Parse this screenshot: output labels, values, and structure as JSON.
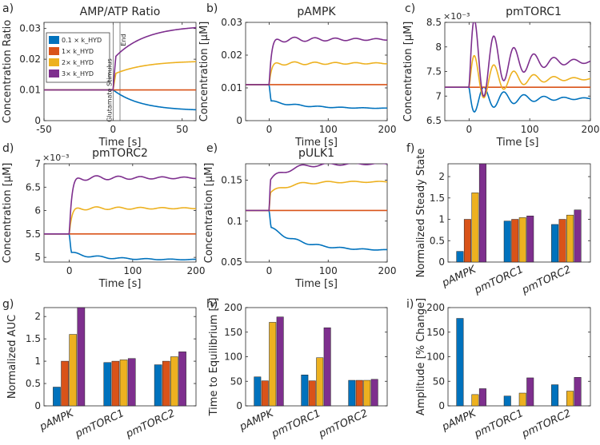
{
  "colors": {
    "blue": "#0072BD",
    "orange": "#D95319",
    "yellow": "#EDB120",
    "purple": "#7E2F8E",
    "axis": "#262626"
  },
  "chart_data": [
    {
      "panel": "a)",
      "type": "line",
      "title": "AMP/ATP Ratio",
      "xlabel": "Time [s]",
      "ylabel": "Concentration Ratio",
      "xlim": [
        -50,
        60
      ],
      "ylim": [
        0,
        0.032
      ],
      "xticks": [
        -50,
        0,
        50
      ],
      "yticks": [
        0,
        0.01,
        0.02,
        0.03
      ],
      "xtick_labels": [
        "-50",
        "0",
        "50"
      ],
      "ytick_labels": [
        "0",
        "0.01",
        "0.02",
        "0.03"
      ],
      "legend": [
        "0.1 × k_HYD",
        "1× k_HYD",
        "2× k_HYD",
        "3× k_HYD"
      ],
      "annotations": [
        "Glutamate Stimulus",
        "End"
      ],
      "vlines": [
        0,
        5
      ],
      "series": [
        {
          "name": "0.1 × k_HYD",
          "color": "blue",
          "shape": "decay",
          "base": 0.01,
          "final": 0.0032,
          "tau": 20,
          "osc": 0
        },
        {
          "name": "1× k_HYD",
          "color": "orange",
          "shape": "flat",
          "base": 0.01,
          "final": 0.01,
          "tau": 10,
          "osc": 0
        },
        {
          "name": "2× k_HYD",
          "color": "yellow",
          "shape": "rise",
          "base": 0.01,
          "final": 0.0195,
          "jump": 0.005,
          "tau": 22,
          "osc": 0
        },
        {
          "name": "3× k_HYD",
          "color": "purple",
          "shape": "rise",
          "base": 0.01,
          "final": 0.031,
          "jump": 0.01,
          "tau": 22,
          "osc": 0
        }
      ]
    },
    {
      "panel": "b)",
      "type": "line",
      "title": "pAMPK",
      "xlabel": "Time [s]",
      "ylabel": "Concentration [μM]",
      "xlim": [
        -40,
        200
      ],
      "ylim": [
        0,
        0.03
      ],
      "xticks": [
        0,
        100,
        200
      ],
      "yticks": [
        0,
        0.01,
        0.02,
        0.03
      ],
      "xtick_labels": [
        "0",
        "100",
        "200"
      ],
      "ytick_labels": [
        "0",
        "0.01",
        "0.02",
        "0.03"
      ],
      "series": [
        {
          "name": "0.1 × k_HYD",
          "color": "blue",
          "shape": "drop",
          "base": 0.011,
          "final": 0.0037,
          "jump": -0.005,
          "tau": 60,
          "osc": 0.0003
        },
        {
          "name": "1× k_HYD",
          "color": "orange",
          "shape": "flat",
          "base": 0.011,
          "final": 0.011,
          "tau": 10,
          "osc": 0
        },
        {
          "name": "2× k_HYD",
          "color": "yellow",
          "shape": "jump",
          "base": 0.011,
          "final": 0.0175,
          "tau": 4,
          "osc": 0.0006
        },
        {
          "name": "3× k_HYD",
          "color": "purple",
          "shape": "jump",
          "base": 0.011,
          "final": 0.0248,
          "tau": 4,
          "osc": 0.0009
        }
      ]
    },
    {
      "panel": "c)",
      "type": "line",
      "title": "pmTORC1",
      "xlabel": "Time [s]",
      "ylabel": "Concentration [μM]",
      "xlim": [
        -40,
        200
      ],
      "ylim": [
        0.0065,
        0.0085
      ],
      "xticks": [
        0,
        100,
        200
      ],
      "yticks": [
        0.0065,
        0.007,
        0.0075,
        0.008,
        0.0085
      ],
      "xtick_labels": [
        "0",
        "100",
        "200"
      ],
      "ytick_labels": [
        "6.5",
        "7",
        "7.5",
        "8",
        "8.5"
      ],
      "exponent_label": "×10⁻³",
      "series": [
        {
          "name": "0.1 × k_HYD",
          "color": "blue",
          "shape": "osc",
          "base": 0.00718,
          "final": 0.00695,
          "amp": -0.00035,
          "decay": 60,
          "period": 33
        },
        {
          "name": "1× k_HYD",
          "color": "orange",
          "shape": "flat",
          "base": 0.00718,
          "final": 0.00718,
          "tau": 10,
          "osc": 0
        },
        {
          "name": "2× k_HYD",
          "color": "yellow",
          "shape": "osc",
          "base": 0.00718,
          "final": 0.00735,
          "amp": 0.0006,
          "decay": 55,
          "period": 33
        },
        {
          "name": "3× k_HYD",
          "color": "purple",
          "shape": "osc",
          "base": 0.00718,
          "final": 0.0077,
          "amp": 0.0011,
          "decay": 55,
          "period": 33
        }
      ]
    },
    {
      "panel": "d)",
      "type": "line",
      "title": "pmTORC2",
      "xlabel": "Time [s]",
      "ylabel": "Concentration [μM]",
      "xlim": [
        -40,
        200
      ],
      "ylim": [
        0.0049,
        0.007
      ],
      "xticks": [
        0,
        100,
        200
      ],
      "yticks": [
        0.005,
        0.0055,
        0.006,
        0.0065,
        0.007
      ],
      "xtick_labels": [
        "0",
        "100",
        "200"
      ],
      "ytick_labels": [
        "5",
        "5.5",
        "6",
        "6.5",
        "7"
      ],
      "exponent_label": "×10⁻³",
      "series": [
        {
          "name": "0.1 × k_HYD",
          "color": "blue",
          "shape": "drop",
          "base": 0.0055,
          "final": 0.00495,
          "jump": -0.0004,
          "tau": 50,
          "osc": 3e-05
        },
        {
          "name": "1× k_HYD",
          "color": "orange",
          "shape": "flat",
          "base": 0.0055,
          "final": 0.0055,
          "tau": 10,
          "osc": 0
        },
        {
          "name": "2× k_HYD",
          "color": "yellow",
          "shape": "jump",
          "base": 0.0055,
          "final": 0.00605,
          "tau": 4,
          "osc": 4e-05
        },
        {
          "name": "3× k_HYD",
          "color": "purple",
          "shape": "jump",
          "base": 0.0055,
          "final": 0.0067,
          "tau": 4,
          "osc": 6e-05
        }
      ]
    },
    {
      "panel": "e)",
      "type": "line",
      "title": "pULK1",
      "xlabel": "Time [s]",
      "ylabel": "Concentration [μM]",
      "xlim": [
        -40,
        200
      ],
      "ylim": [
        0.05,
        0.17
      ],
      "xticks": [
        0,
        100,
        200
      ],
      "yticks": [
        0.05,
        0.1,
        0.15
      ],
      "xtick_labels": [
        "0",
        "100",
        "200"
      ],
      "ytick_labels": [
        "0.05",
        "0.1",
        "0.15"
      ],
      "series": [
        {
          "name": "0.1 × k_HYD",
          "color": "blue",
          "shape": "drop",
          "base": 0.113,
          "final": 0.064,
          "jump": -0.02,
          "tau": 55,
          "osc": 0.002
        },
        {
          "name": "1× k_HYD",
          "color": "orange",
          "shape": "flat",
          "base": 0.113,
          "final": 0.113,
          "tau": 10,
          "osc": 0
        },
        {
          "name": "2× k_HYD",
          "color": "yellow",
          "shape": "rise",
          "base": 0.113,
          "final": 0.148,
          "jump": 0.02,
          "tau": 30,
          "osc": 0.002
        },
        {
          "name": "3× k_HYD",
          "color": "purple",
          "shape": "rise",
          "base": 0.113,
          "final": 0.17,
          "jump": 0.035,
          "tau": 30,
          "osc": 0.003
        }
      ]
    },
    {
      "panel": "f)",
      "type": "bar",
      "title": "",
      "ylabel": "Normalized Steady State",
      "categories": [
        "pAMPK",
        "pmTORC1",
        "pmTORC2"
      ],
      "ylim": [
        0,
        2.3
      ],
      "yticks": [
        0,
        0.5,
        1,
        1.5,
        2
      ],
      "ytick_labels": [
        "0",
        "0.5",
        "1",
        "1.5",
        "2"
      ],
      "series": [
        {
          "name": "0.1 × k_HYD",
          "color": "blue",
          "values": [
            0.25,
            0.96,
            0.88
          ]
        },
        {
          "name": "1× k_HYD",
          "color": "orange",
          "values": [
            1.0,
            1.0,
            1.0
          ]
        },
        {
          "name": "2× k_HYD",
          "color": "yellow",
          "values": [
            1.62,
            1.04,
            1.1
          ]
        },
        {
          "name": "3× k_HYD",
          "color": "purple",
          "values": [
            2.3,
            1.08,
            1.22
          ]
        }
      ]
    },
    {
      "panel": "g)",
      "type": "bar",
      "title": "",
      "ylabel": "Normalized AUC",
      "categories": [
        "pAMPK",
        "pmTORC1",
        "pmTORC2"
      ],
      "ylim": [
        0,
        2.2
      ],
      "yticks": [
        0,
        0.5,
        1,
        1.5,
        2
      ],
      "ytick_labels": [
        "0",
        "0.5",
        "1",
        "1.5",
        "2"
      ],
      "series": [
        {
          "name": "0.1 × k_HYD",
          "color": "blue",
          "values": [
            0.42,
            0.97,
            0.92
          ]
        },
        {
          "name": "1× k_HYD",
          "color": "orange",
          "values": [
            1.0,
            1.0,
            1.0
          ]
        },
        {
          "name": "2× k_HYD",
          "color": "yellow",
          "values": [
            1.6,
            1.03,
            1.1
          ]
        },
        {
          "name": "3× k_HYD",
          "color": "purple",
          "values": [
            2.2,
            1.06,
            1.21
          ]
        }
      ]
    },
    {
      "panel": "h)",
      "type": "bar",
      "title": "",
      "ylabel": "Time to Equilibrium [s]",
      "categories": [
        "pAMPK",
        "pmTORC1",
        "pmTORC2"
      ],
      "ylim": [
        0,
        200
      ],
      "yticks": [
        0,
        50,
        100,
        150,
        200
      ],
      "ytick_labels": [
        "0",
        "50",
        "100",
        "150",
        "200"
      ],
      "series": [
        {
          "name": "0.1 × k_HYD",
          "color": "blue",
          "values": [
            59,
            63,
            52
          ]
        },
        {
          "name": "1× k_HYD",
          "color": "orange",
          "values": [
            51,
            51,
            52
          ]
        },
        {
          "name": "2× k_HYD",
          "color": "yellow",
          "values": [
            170,
            98,
            52
          ]
        },
        {
          "name": "3× k_HYD",
          "color": "purple",
          "values": [
            181,
            159,
            54
          ]
        }
      ]
    },
    {
      "panel": "i)",
      "type": "bar",
      "title": "",
      "ylabel": "Amplitude [% Change]",
      "categories": [
        "pAMPK",
        "pmTORC1",
        "pmTORC2"
      ],
      "ylim": [
        0,
        200
      ],
      "yticks": [
        0,
        50,
        100,
        150,
        200
      ],
      "ytick_labels": [
        "0",
        "50",
        "100",
        "150",
        "200"
      ],
      "series": [
        {
          "name": "0.1 × k_HYD",
          "color": "blue",
          "values": [
            178,
            20,
            43
          ]
        },
        {
          "name": "1× k_HYD",
          "color": "orange",
          "values": [
            0,
            0,
            0
          ]
        },
        {
          "name": "2× k_HYD",
          "color": "yellow",
          "values": [
            23,
            26,
            30
          ]
        },
        {
          "name": "3× k_HYD",
          "color": "purple",
          "values": [
            35,
            57,
            58
          ]
        }
      ]
    }
  ]
}
